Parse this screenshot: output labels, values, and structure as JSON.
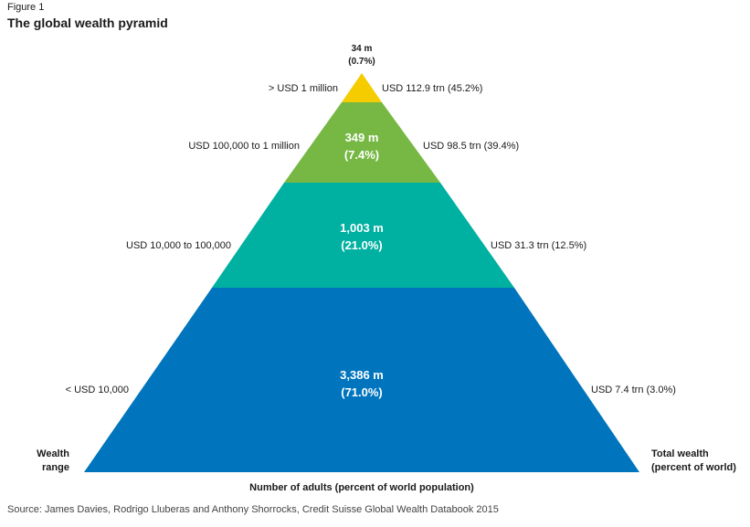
{
  "figure": {
    "label": "Figure 1",
    "title": "The global wealth pyramid",
    "source": "Source: James Davies, Rodrigo Lluberas and Anthony Shorrocks, Credit Suisse Global Wealth Databook 2015"
  },
  "levels": [
    {
      "name": "top",
      "color": "#f5cc00",
      "adults": "34 m",
      "share": "(0.7%)",
      "wealth_range": "> USD 1 million",
      "total_wealth": "USD 112.9 trn (45.2%)"
    },
    {
      "name": "upper-middle",
      "color": "#76b843",
      "adults": "349 m",
      "share": "(7.4%)",
      "wealth_range": "USD 100,000 to 1 million",
      "total_wealth": "USD 98.5 trn (39.4%)"
    },
    {
      "name": "middle",
      "color": "#00b0a0",
      "adults": "1,003 m",
      "share": "(21.0%)",
      "wealth_range": "USD 10,000 to 100,000",
      "total_wealth": "USD 31.3 trn (12.5%)"
    },
    {
      "name": "base",
      "color": "#0075be",
      "adults": "3,386 m",
      "share": "(71.0%)",
      "wealth_range": "< USD 10,000",
      "total_wealth": "USD 7.4 trn (3.0%)"
    }
  ],
  "axis": {
    "left_line1": "Wealth",
    "left_line2": "range",
    "right_line1": "Total wealth",
    "right_line2": "(percent of world)",
    "bottom": "Number of adults (percent of world population)"
  }
}
